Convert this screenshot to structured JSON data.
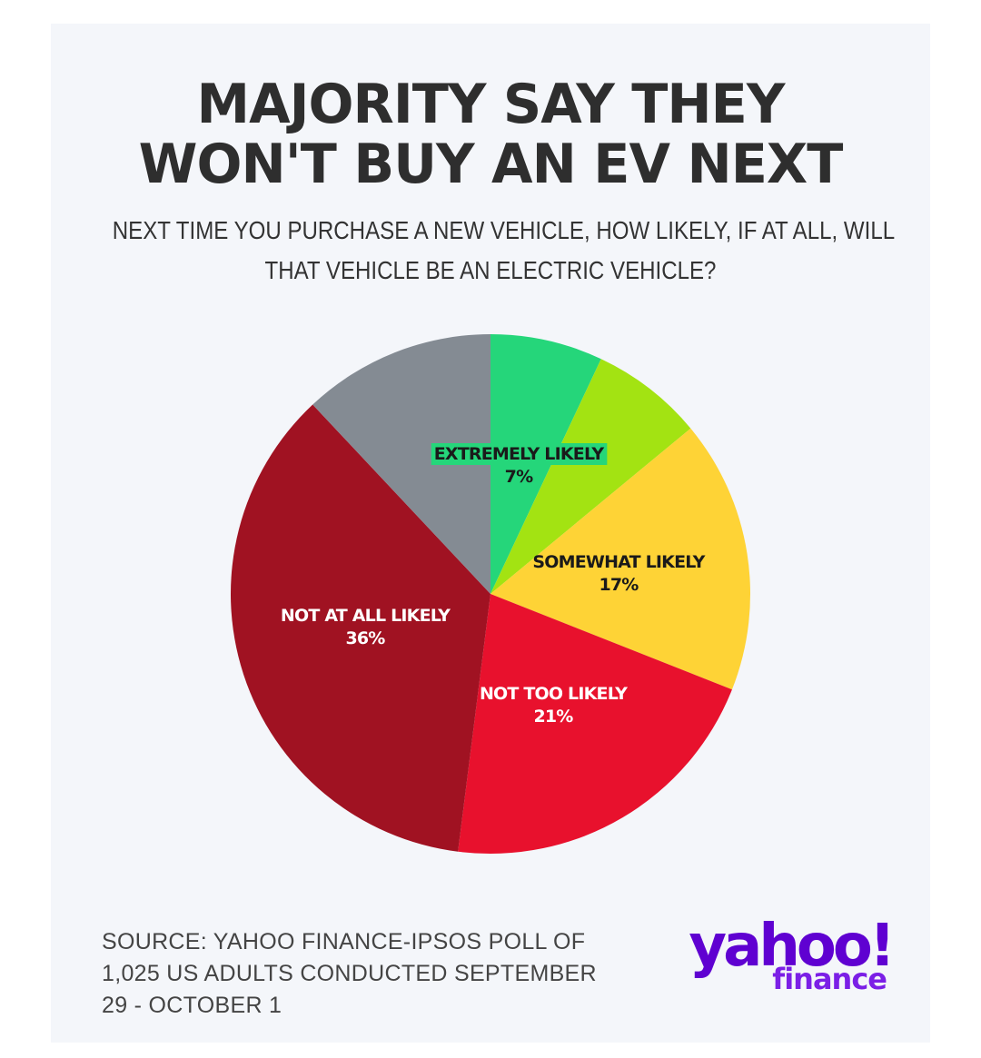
{
  "title_lines": [
    "MAJORITY SAY THEY",
    "WON'T BUY AN EV NEXT"
  ],
  "subtitle_lines": [
    "NEXT TIME YOU PURCHASE A NEW VEHICLE, HOW LIKELY, IF AT ALL, WILL",
    "THAT VEHICLE BE AN ELECTRIC VEHICLE?"
  ],
  "source_lines": [
    "SOURCE: YAHOO FINANCE-IPSOS POLL OF",
    "1,025 US ADULTS CONDUCTED SEPTEMBER",
    "29 - OCTOBER 1"
  ],
  "logo": {
    "main": "yahoo!",
    "sub": "finance",
    "color": "#5f01d1"
  },
  "chart_data": {
    "type": "pie",
    "title": "MAJORITY SAY THEY WON'T BUY AN EV NEXT",
    "start": "12 o'clock, clockwise",
    "slices": [
      {
        "label": "EXTREMELY LIKELY",
        "value": 7,
        "value_label": "7%",
        "color": "#25d67a",
        "label_box": "#25d67a",
        "text_color": "#1a1a1a"
      },
      {
        "label": "",
        "value": 7,
        "value_label": "",
        "color": "#a3e312",
        "text_color": "#1a1a1a"
      },
      {
        "label": "SOMEWHAT LIKELY",
        "value": 17,
        "value_label": "17%",
        "color": "#fed336",
        "text_color": "#1a1a1a"
      },
      {
        "label": "NOT TOO LIKELY",
        "value": 21,
        "value_label": "21%",
        "color": "#e8112d",
        "text_color": "#ffffff"
      },
      {
        "label": "NOT AT ALL LIKELY",
        "value": 36,
        "value_label": "36%",
        "color": "#a01222",
        "text_color": "#ffffff"
      },
      {
        "label": "",
        "value": 12,
        "value_label": "",
        "color": "#848b93",
        "text_color": "#ffffff"
      }
    ]
  }
}
